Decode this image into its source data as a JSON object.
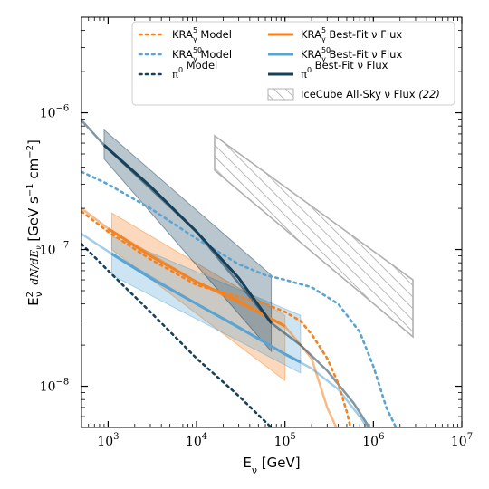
{
  "chart_data": {
    "type": "line",
    "title": "",
    "xlabel": "E_ν [GeV]",
    "ylabel": "E²_ν dN/dE_ν [GeV s⁻¹ cm⁻²]",
    "xscale": "log",
    "yscale": "log",
    "xlim": [
      500,
      10000000
    ],
    "ylim": [
      5e-09,
      5e-06
    ],
    "x_ticks": [
      {
        "value": 1000,
        "base": "10",
        "exp": "3"
      },
      {
        "value": 10000,
        "base": "10",
        "exp": "4"
      },
      {
        "value": 100000,
        "base": "10",
        "exp": "5"
      },
      {
        "value": 1000000,
        "base": "10",
        "exp": "6"
      },
      {
        "value": 10000000,
        "base": "10",
        "exp": "7"
      }
    ],
    "y_ticks": [
      {
        "value": 1e-08,
        "base": "10",
        "exp": "−8"
      },
      {
        "value": 1e-07,
        "base": "10",
        "exp": "−7"
      },
      {
        "value": 1e-06,
        "base": "10",
        "exp": "−6"
      }
    ],
    "grid": false,
    "legend_position": "top-right",
    "legend": [
      {
        "label": "KRA₅γ Model",
        "base": "KRA",
        "sup": "5",
        "sub": "γ",
        "rest": " Model",
        "color": "#f58220",
        "style": "dotted",
        "col": 0,
        "row": 0
      },
      {
        "label": "KRA⁵⁰γ Model",
        "base": "KRA",
        "sup": "50",
        "sub": "γ",
        "rest": " Model",
        "color": "#5aa4d4",
        "style": "dotted",
        "col": 0,
        "row": 1
      },
      {
        "label": "π⁰ Model",
        "base": "π",
        "sup": "0",
        "sub": "",
        "rest": " Model",
        "color": "#17415a",
        "style": "dotted",
        "col": 0,
        "row": 2
      },
      {
        "label": "KRA₅γ Best-Fit ν Flux",
        "base": "KRA",
        "sup": "5",
        "sub": "γ",
        "rest": " Best-Fit ν Flux",
        "color": "#f58220",
        "style": "solid",
        "col": 1,
        "row": 0
      },
      {
        "label": "KRA⁵⁰γ Best-Fit ν Flux",
        "base": "KRA",
        "sup": "50",
        "sub": "γ",
        "rest": " Best-Fit ν Flux",
        "color": "#5aa4d4",
        "style": "solid",
        "col": 1,
        "row": 1
      },
      {
        "label": "π⁰ Best-Fit ν Flux",
        "base": "π",
        "sup": "0",
        "sub": "",
        "rest": "  Best-Fit ν Flux",
        "color": "#17415a",
        "style": "solid",
        "col": 1,
        "row": 2
      },
      {
        "label": "IceCube All-Sky ν Flux (22)",
        "base": "IceCube All-Sky ν Flux ",
        "sup": "",
        "sub": "",
        "rest": "",
        "italic": "(22)",
        "color": "#b0b0b0",
        "style": "hatch",
        "col": 1,
        "row": 3
      }
    ],
    "series": [
      {
        "name": "KRA5γ Model",
        "style": "dotted",
        "color": "#f58220",
        "points": [
          [
            500,
            1.9e-07
          ],
          [
            1000,
            1.35e-07
          ],
          [
            3000,
            8.5e-08
          ],
          [
            10000,
            5.5e-08
          ],
          [
            30000,
            4.5e-08
          ],
          [
            60000,
            4e-08
          ],
          [
            100000,
            3.5e-08
          ],
          [
            150000,
            3e-08
          ],
          [
            200000,
            2.4e-08
          ],
          [
            300000,
            1.6e-08
          ],
          [
            400000,
            1.05e-08
          ],
          [
            500000,
            6.5e-09
          ],
          [
            550000,
            5e-09
          ]
        ]
      },
      {
        "name": "KRA50γ Model",
        "style": "dotted",
        "color": "#5aa4d4",
        "points": [
          [
            500,
            3.7e-07
          ],
          [
            1000,
            3e-07
          ],
          [
            3000,
            2e-07
          ],
          [
            10000,
            1.2e-07
          ],
          [
            30000,
            7.8e-08
          ],
          [
            60000,
            6.5e-08
          ],
          [
            100000,
            6e-08
          ],
          [
            200000,
            5.3e-08
          ],
          [
            400000,
            4e-08
          ],
          [
            700000,
            2.5e-08
          ],
          [
            1000000,
            1.4e-08
          ],
          [
            1400000,
            7e-09
          ],
          [
            1800000,
            5e-09
          ]
        ]
      },
      {
        "name": "π⁰ Model",
        "style": "dotted",
        "color": "#17415a",
        "points": [
          [
            500,
            1.1e-07
          ],
          [
            1000,
            7e-08
          ],
          [
            3000,
            3.5e-08
          ],
          [
            10000,
            1.6e-08
          ],
          [
            30000,
            8.5e-09
          ],
          [
            60000,
            5.5e-09
          ],
          [
            70000,
            5e-09
          ]
        ]
      },
      {
        "name": "KRA5γ Best-Fit ν Flux",
        "style": "solid",
        "color": "#f58220",
        "points": [
          [
            1000,
            1.42e-07
          ],
          [
            3000,
            9e-08
          ],
          [
            10000,
            5.8e-08
          ],
          [
            30000,
            4.2e-08
          ],
          [
            100000,
            2.75e-08
          ]
        ],
        "band": {
          "x": [
            1100,
            100000
          ],
          "upper": [
            1.85e-07,
            3.3e-08
          ],
          "lower": [
            1e-07,
            1.1e-08
          ]
        }
      },
      {
        "name": "KRA5γ Best-Fit ν Flux (extrapolation)",
        "style": "solid-faded",
        "color": "#f58220",
        "points": [
          [
            500,
            2e-07
          ],
          [
            1000,
            1.42e-07
          ],
          [
            10000,
            5.8e-08
          ],
          [
            100000,
            2.75e-08
          ],
          [
            200000,
            1.6e-08
          ],
          [
            300000,
            7e-09
          ],
          [
            380000,
            5e-09
          ]
        ]
      },
      {
        "name": "KRA50γ Best-Fit ν Flux",
        "style": "solid",
        "color": "#5aa4d4",
        "points": [
          [
            1100,
            9.3e-08
          ],
          [
            3000,
            6.2e-08
          ],
          [
            10000,
            4e-08
          ],
          [
            30000,
            2.7e-08
          ],
          [
            100000,
            1.72e-08
          ],
          [
            150000,
            1.5e-08
          ]
        ],
        "band": {
          "x": [
            1100,
            150000
          ],
          "upper": [
            1.25e-07,
            3.3e-08
          ],
          "lower": [
            6.5e-08,
            1.25e-08
          ]
        }
      },
      {
        "name": "KRA50γ Best-Fit ν Flux (extrapolation)",
        "style": "solid-faded",
        "color": "#5aa4d4",
        "points": [
          [
            500,
            1.3e-07
          ],
          [
            1100,
            9.3e-08
          ],
          [
            10000,
            4e-08
          ],
          [
            100000,
            1.72e-08
          ],
          [
            200000,
            1.35e-08
          ],
          [
            400000,
            9.5e-09
          ],
          [
            700000,
            6e-09
          ],
          [
            850000,
            5e-09
          ]
        ]
      },
      {
        "name": "π⁰ Best-Fit ν Flux",
        "style": "solid",
        "color": "#17415a",
        "points": [
          [
            900,
            5.8e-07
          ],
          [
            3000,
            2.9e-07
          ],
          [
            10000,
            1.35e-07
          ],
          [
            30000,
            6.2e-08
          ],
          [
            70000,
            2.9e-08
          ]
        ],
        "band": {
          "x": [
            900,
            70000
          ],
          "upper": [
            7.5e-07,
            6.5e-08
          ],
          "lower": [
            4.6e-07,
            1.8e-08
          ]
        }
      },
      {
        "name": "π⁰ Best-Fit ν Flux (extrapolation)",
        "style": "solid-faded",
        "color": "#17415a",
        "points": [
          [
            500,
            8.8e-07
          ],
          [
            900,
            5.8e-07
          ],
          [
            10000,
            1.35e-07
          ],
          [
            70000,
            2.9e-08
          ],
          [
            150000,
            2e-08
          ],
          [
            300000,
            1.3e-08
          ],
          [
            600000,
            7.5e-09
          ],
          [
            900000,
            5e-09
          ]
        ]
      },
      {
        "name": "IceCube All-Sky ν Flux (22)",
        "style": "hatch",
        "color": "#b0b0b0",
        "band": {
          "x": [
            16000,
            2800000
          ],
          "upper": [
            6.8e-07,
            6e-08
          ],
          "lower": [
            3.8e-07,
            2.3e-08
          ]
        }
      }
    ]
  }
}
